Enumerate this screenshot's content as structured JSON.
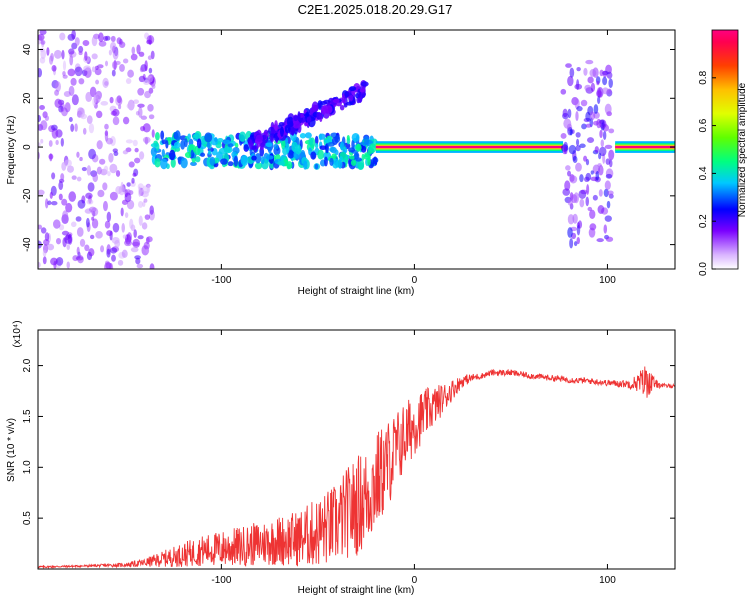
{
  "title": "C2E1.2025.018.20.29.G17",
  "chart_data": [
    {
      "type": "heatmap",
      "xlabel": "Height of straight line (km)",
      "ylabel": "Frequency (Hz)",
      "xlim": [
        -195,
        135
      ],
      "ylim": [
        -50,
        48
      ],
      "xticks": [
        "-100",
        "0",
        "100"
      ],
      "xtick_values": [
        -100,
        0,
        100
      ],
      "yticks": [
        "-40",
        "-20",
        "0",
        "20",
        "40"
      ],
      "ytick_values": [
        -40,
        -20,
        0,
        20,
        40
      ],
      "colorbar": {
        "label": "Normalized spectral amplitude",
        "ticks": [
          "0.0",
          "0.2",
          "0.4",
          "0.6",
          "0.8"
        ],
        "tick_values": [
          0.0,
          0.2,
          0.4,
          0.6,
          0.8
        ],
        "range": [
          0,
          1
        ]
      },
      "regions": [
        {
          "x": [
            -195,
            -135
          ],
          "freq": [
            -50,
            48
          ],
          "amplitude": [
            0.05,
            0.2
          ],
          "pattern": "noise"
        },
        {
          "x": [
            -135,
            -20
          ],
          "freq": [
            -8,
            5
          ],
          "amplitude": [
            0.25,
            0.45
          ],
          "pattern": "scattered-band"
        },
        {
          "x": [
            -85,
            -25
          ],
          "freq": [
            0,
            32
          ],
          "amplitude": [
            0.15,
            0.25
          ],
          "pattern": "rising-branch"
        },
        {
          "x": [
            -20,
            77
          ],
          "freq": [
            -2,
            2
          ],
          "amplitude": [
            0.95,
            1.0
          ],
          "pattern": "steady-band"
        },
        {
          "x": [
            77,
            102
          ],
          "freq": [
            -40,
            35
          ],
          "amplitude": [
            0.1,
            0.25
          ],
          "pattern": "noise"
        },
        {
          "x": [
            104,
            135
          ],
          "freq": [
            -2,
            2
          ],
          "amplitude": [
            0.9,
            1.0
          ],
          "pattern": "steady-band"
        }
      ]
    },
    {
      "type": "line",
      "xlabel": "Height of straight line (km)",
      "ylabel": "SNR (10 * v/v)",
      "y_multiplier": "(x10⁴)",
      "xlim": [
        -195,
        135
      ],
      "ylim": [
        0,
        2.35
      ],
      "xticks": [
        "-100",
        "0",
        "100"
      ],
      "xtick_values": [
        -100,
        0,
        100
      ],
      "yticks": [
        "0.5",
        "1.0",
        "1.5",
        "2.0"
      ],
      "ytick_values": [
        0.5,
        1.0,
        1.5,
        2.0
      ],
      "series": [
        {
          "color": "#ee3333",
          "x": [
            -195,
            -170,
            -150,
            -140,
            -130,
            -120,
            -110,
            -100,
            -90,
            -80,
            -70,
            -60,
            -50,
            -40,
            -35,
            -30,
            -25,
            -20,
            -15,
            -10,
            -5,
            0,
            5,
            10,
            15,
            20,
            25,
            30,
            35,
            40,
            50,
            60,
            70,
            80,
            90,
            100,
            110,
            115,
            120,
            125,
            130,
            135
          ],
          "mean": [
            0.02,
            0.03,
            0.04,
            0.06,
            0.1,
            0.14,
            0.18,
            0.2,
            0.22,
            0.25,
            0.28,
            0.3,
            0.36,
            0.45,
            0.55,
            0.62,
            0.7,
            0.85,
            1.0,
            1.15,
            1.3,
            1.42,
            1.52,
            1.6,
            1.68,
            1.77,
            1.85,
            1.88,
            1.9,
            1.93,
            1.93,
            1.9,
            1.88,
            1.86,
            1.85,
            1.83,
            1.82,
            1.83,
            1.85,
            1.82,
            1.8,
            1.8
          ],
          "noise": [
            0.01,
            0.01,
            0.02,
            0.04,
            0.08,
            0.12,
            0.15,
            0.18,
            0.2,
            0.22,
            0.25,
            0.28,
            0.35,
            0.4,
            0.45,
            0.5,
            0.5,
            0.5,
            0.45,
            0.4,
            0.35,
            0.3,
            0.25,
            0.2,
            0.15,
            0.1,
            0.06,
            0.04,
            0.03,
            0.03,
            0.03,
            0.03,
            0.03,
            0.03,
            0.03,
            0.03,
            0.04,
            0.08,
            0.18,
            0.04,
            0.02,
            0.02
          ]
        }
      ]
    }
  ]
}
